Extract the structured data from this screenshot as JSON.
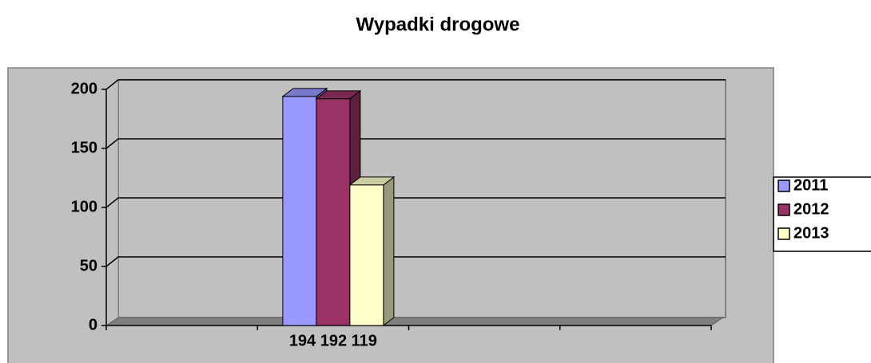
{
  "chart_data": {
    "type": "bar3d",
    "title": "Wypadki drogowe",
    "categories": [
      null,
      "194 192 119",
      null,
      null
    ],
    "series": [
      {
        "name": "2011",
        "color": "#9999ff",
        "values": [
          null,
          194,
          null,
          null
        ]
      },
      {
        "name": "2012",
        "color": "#993366",
        "values": [
          null,
          192,
          null,
          null
        ]
      },
      {
        "name": "2013",
        "color": "#ffffcc",
        "values": [
          null,
          119,
          null,
          null
        ]
      }
    ],
    "ylim": [
      0,
      200
    ],
    "yticks": [
      0,
      50,
      100,
      150,
      200
    ],
    "grid": true,
    "legend": "right"
  }
}
